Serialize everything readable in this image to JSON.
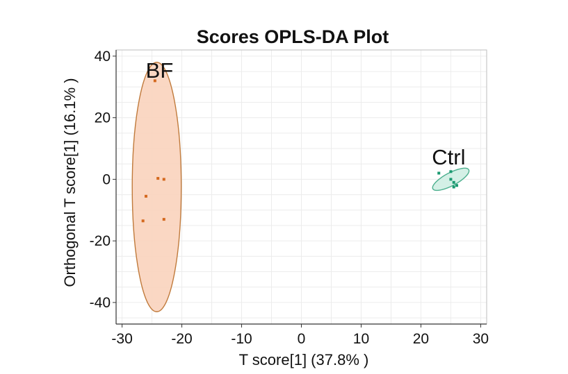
{
  "chart_data": {
    "type": "scatter",
    "title": "Scores OPLS-DA Plot",
    "xlabel": "T score[1] (37.8% )",
    "ylabel": "Orthogonal T score[1] (16.1% )",
    "xlim": [
      -31,
      31
    ],
    "ylim": [
      -47,
      42
    ],
    "xticks": [
      -30,
      -20,
      -10,
      0,
      10,
      20,
      30
    ],
    "yticks": [
      -40,
      -20,
      0,
      20,
      40
    ],
    "xtick_labels": [
      "-30",
      "-20",
      "-10",
      "0",
      "10",
      "20",
      "30"
    ],
    "ytick_labels": [
      "-40",
      "-20",
      "0",
      "20",
      "40"
    ],
    "grid": true,
    "series": [
      {
        "name": "BF",
        "color": "#d4691f",
        "ellipse_fill": "#f9d3bd",
        "ellipse_stroke": "#c07a3b",
        "points": [
          {
            "x": -24.5,
            "y": 32
          },
          {
            "x": -24,
            "y": 0.3
          },
          {
            "x": -23,
            "y": 0
          },
          {
            "x": -26,
            "y": -5.5
          },
          {
            "x": -26.5,
            "y": -13.5
          },
          {
            "x": -23,
            "y": -13
          }
        ],
        "ellipse": {
          "cx": -24.2,
          "cy": -2.5,
          "rx": 4.1,
          "ry": 40.5,
          "rotation": 0
        }
      },
      {
        "name": "Ctrl",
        "color": "#1a9970",
        "ellipse_fill": "#cfeee3",
        "ellipse_stroke": "#4caf8e",
        "points": [
          {
            "x": 23,
            "y": 2
          },
          {
            "x": 25,
            "y": 2.5
          },
          {
            "x": 25,
            "y": 0
          },
          {
            "x": 25.5,
            "y": -1
          },
          {
            "x": 26,
            "y": -2
          },
          {
            "x": 25.5,
            "y": -2.5
          }
        ],
        "ellipse": {
          "cx": 25.0,
          "cy": 0.0,
          "rx": 3.4,
          "ry": 2.1,
          "rotation": 28
        }
      }
    ]
  }
}
